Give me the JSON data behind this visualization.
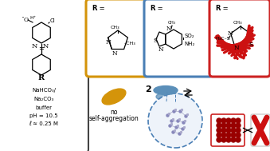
{
  "bg_color": "#ffffff",
  "left_box_color": "#444444",
  "yellow_box_color": "#d4940a",
  "blue_box_color": "#4a7fb5",
  "red_box_color": "#cc2222",
  "buffer_lines": [
    "NaHCO₃/",
    "Na₂CO₃",
    "buffer",
    "pH = 10.5",
    "ℓ ≈ 0.25 M"
  ],
  "ellipse_yellow_color": "#d4940a",
  "ellipse_blue_color": "#5b8fb9",
  "red_fiber_color": "#cc1111",
  "dark_red_color": "#990000",
  "circle_dashed_color": "#4a7fb5",
  "no_agg_text1": "no",
  "no_agg_text2": "self-aggregation"
}
